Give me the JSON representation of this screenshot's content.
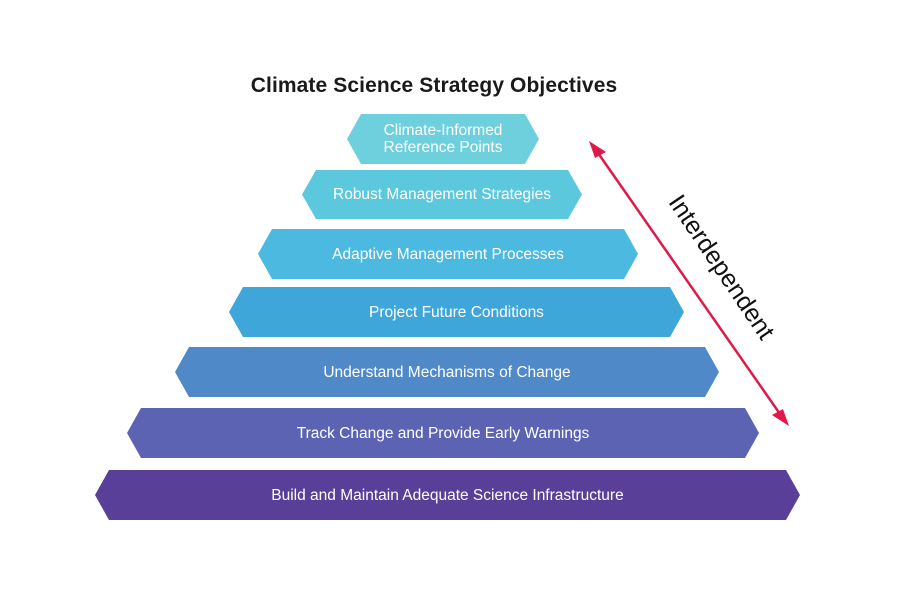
{
  "title": "Climate Science Strategy Objectives",
  "tiers": [
    {
      "line1": "Climate-Informed",
      "line2": "Reference Points",
      "color": "#6fd0dd"
    },
    {
      "line1": "Robust Management Strategies",
      "line2": "",
      "color": "#5cc8dd"
    },
    {
      "line1": "Adaptive Management Processes",
      "line2": "",
      "color": "#4cb9e0"
    },
    {
      "line1": "Project Future Conditions",
      "line2": "",
      "color": "#3fa6d9"
    },
    {
      "line1": "Understand Mechanisms of Change",
      "line2": "",
      "color": "#4f89c8"
    },
    {
      "line1": "Track Change and Provide Early Warnings",
      "line2": "",
      "color": "#5d63b3"
    },
    {
      "line1": "Build and Maintain Adequate Science Infrastructure",
      "line2": "",
      "color": "#5a3f98"
    }
  ],
  "arrow": {
    "label": "Interdependent",
    "color": "#e0194b",
    "type": "double-headed"
  }
}
